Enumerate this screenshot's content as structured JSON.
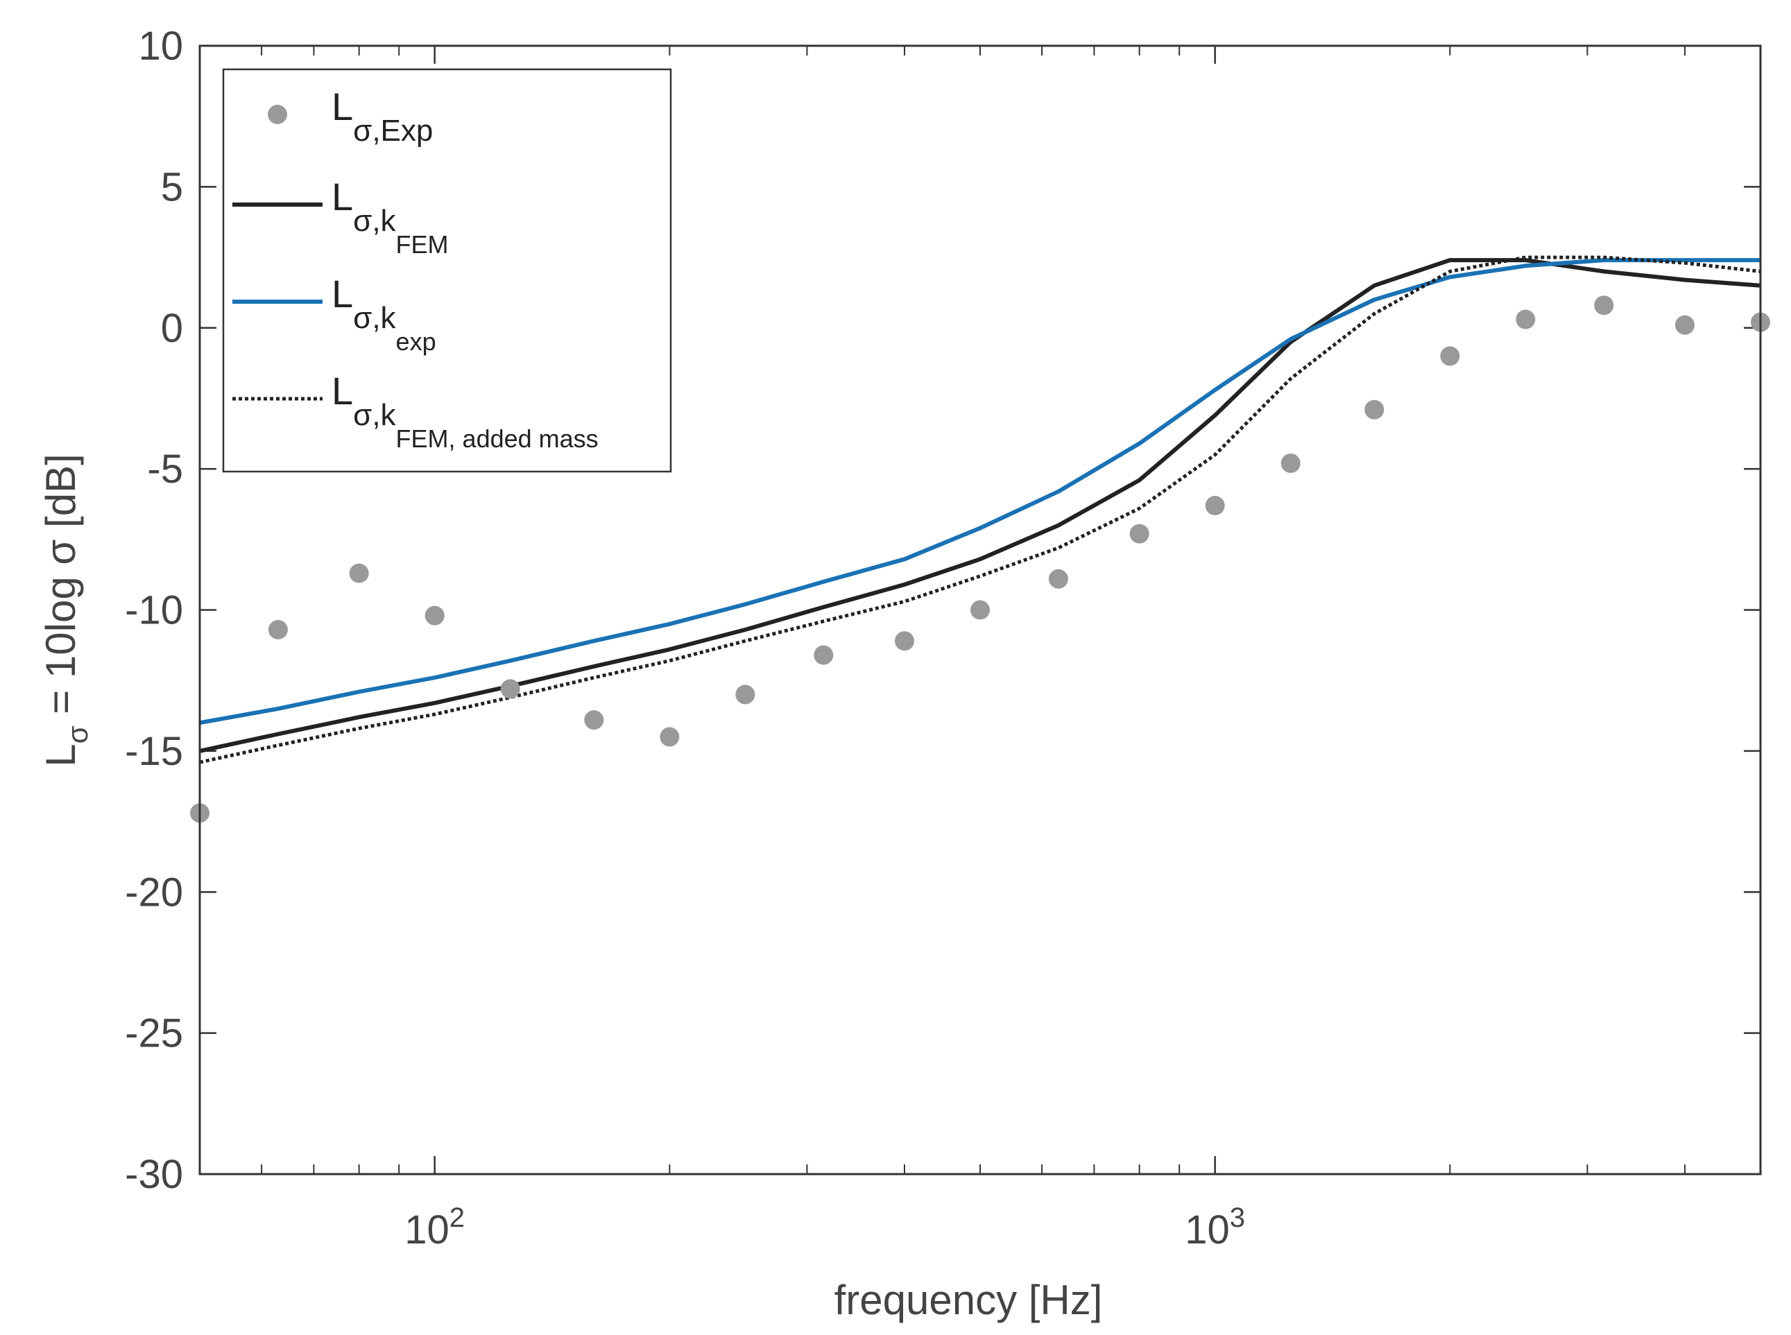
{
  "chart_data": {
    "type": "line",
    "xscale": "log",
    "xlim": [
      50,
      5000
    ],
    "ylim": [
      -30,
      10
    ],
    "xlabel": "frequency [Hz]",
    "ylabel": {
      "main": "L",
      "sub": "σ",
      "rest": " = 10log σ [dB]"
    },
    "x_ticks": [
      {
        "value": 100,
        "base": "10",
        "exp": "2"
      },
      {
        "value": 1000,
        "base": "10",
        "exp": "3"
      }
    ],
    "y_ticks": [
      "10",
      "5",
      "0",
      "-5",
      "-10",
      "-15",
      "-20",
      "-25",
      "-30"
    ],
    "x": [
      50,
      63,
      80,
      100,
      125,
      160,
      200,
      250,
      315,
      400,
      500,
      630,
      800,
      1000,
      1250,
      1600,
      2000,
      2500,
      3150,
      4000,
      5000
    ],
    "series": [
      {
        "name": "L_σ,Exp",
        "style": "markers",
        "color": "#999999",
        "values": [
          -17.2,
          -10.7,
          -8.7,
          -10.2,
          -12.8,
          -13.9,
          -14.5,
          -13.0,
          -11.6,
          -11.1,
          -10.0,
          -8.9,
          -7.3,
          -6.3,
          -4.8,
          -2.9,
          -1.0,
          0.3,
          0.8,
          0.1,
          0.2
        ]
      },
      {
        "name": "L_σ,k_FEM",
        "style": "solid",
        "color": "#222222",
        "values": [
          -15.0,
          -14.4,
          -13.8,
          -13.3,
          -12.7,
          -12.0,
          -11.4,
          -10.7,
          -9.9,
          -9.1,
          -8.2,
          -7.0,
          -5.4,
          -3.1,
          -0.5,
          1.5,
          2.4,
          2.4,
          2.0,
          1.7,
          1.5
        ]
      },
      {
        "name": "L_σ,k_exp",
        "style": "solid",
        "color": "#1a72b5",
        "values": [
          -14.0,
          -13.5,
          -12.9,
          -12.4,
          -11.8,
          -11.1,
          -10.5,
          -9.8,
          -9.0,
          -8.2,
          -7.1,
          -5.8,
          -4.1,
          -2.2,
          -0.4,
          1.0,
          1.8,
          2.2,
          2.4,
          2.4,
          2.4
        ]
      },
      {
        "name": "L_σ,k_FEM, added mass",
        "style": "dotted",
        "color": "#222222",
        "values": [
          -15.4,
          -14.8,
          -14.2,
          -13.7,
          -13.1,
          -12.4,
          -11.8,
          -11.1,
          -10.4,
          -9.7,
          -8.8,
          -7.8,
          -6.4,
          -4.5,
          -1.8,
          0.5,
          2.0,
          2.5,
          2.5,
          2.3,
          2.0
        ]
      }
    ],
    "legend": {
      "position": "top-left",
      "entries": [
        {
          "main": "L",
          "sub": "σ,Exp",
          "subsub": ""
        },
        {
          "main": "L",
          "sub": "σ,k",
          "subsub": "FEM"
        },
        {
          "main": "L",
          "sub": "σ,k",
          "subsub": "exp"
        },
        {
          "main": "L",
          "sub": "σ,k",
          "subsub": "FEM, added mass"
        }
      ]
    }
  }
}
